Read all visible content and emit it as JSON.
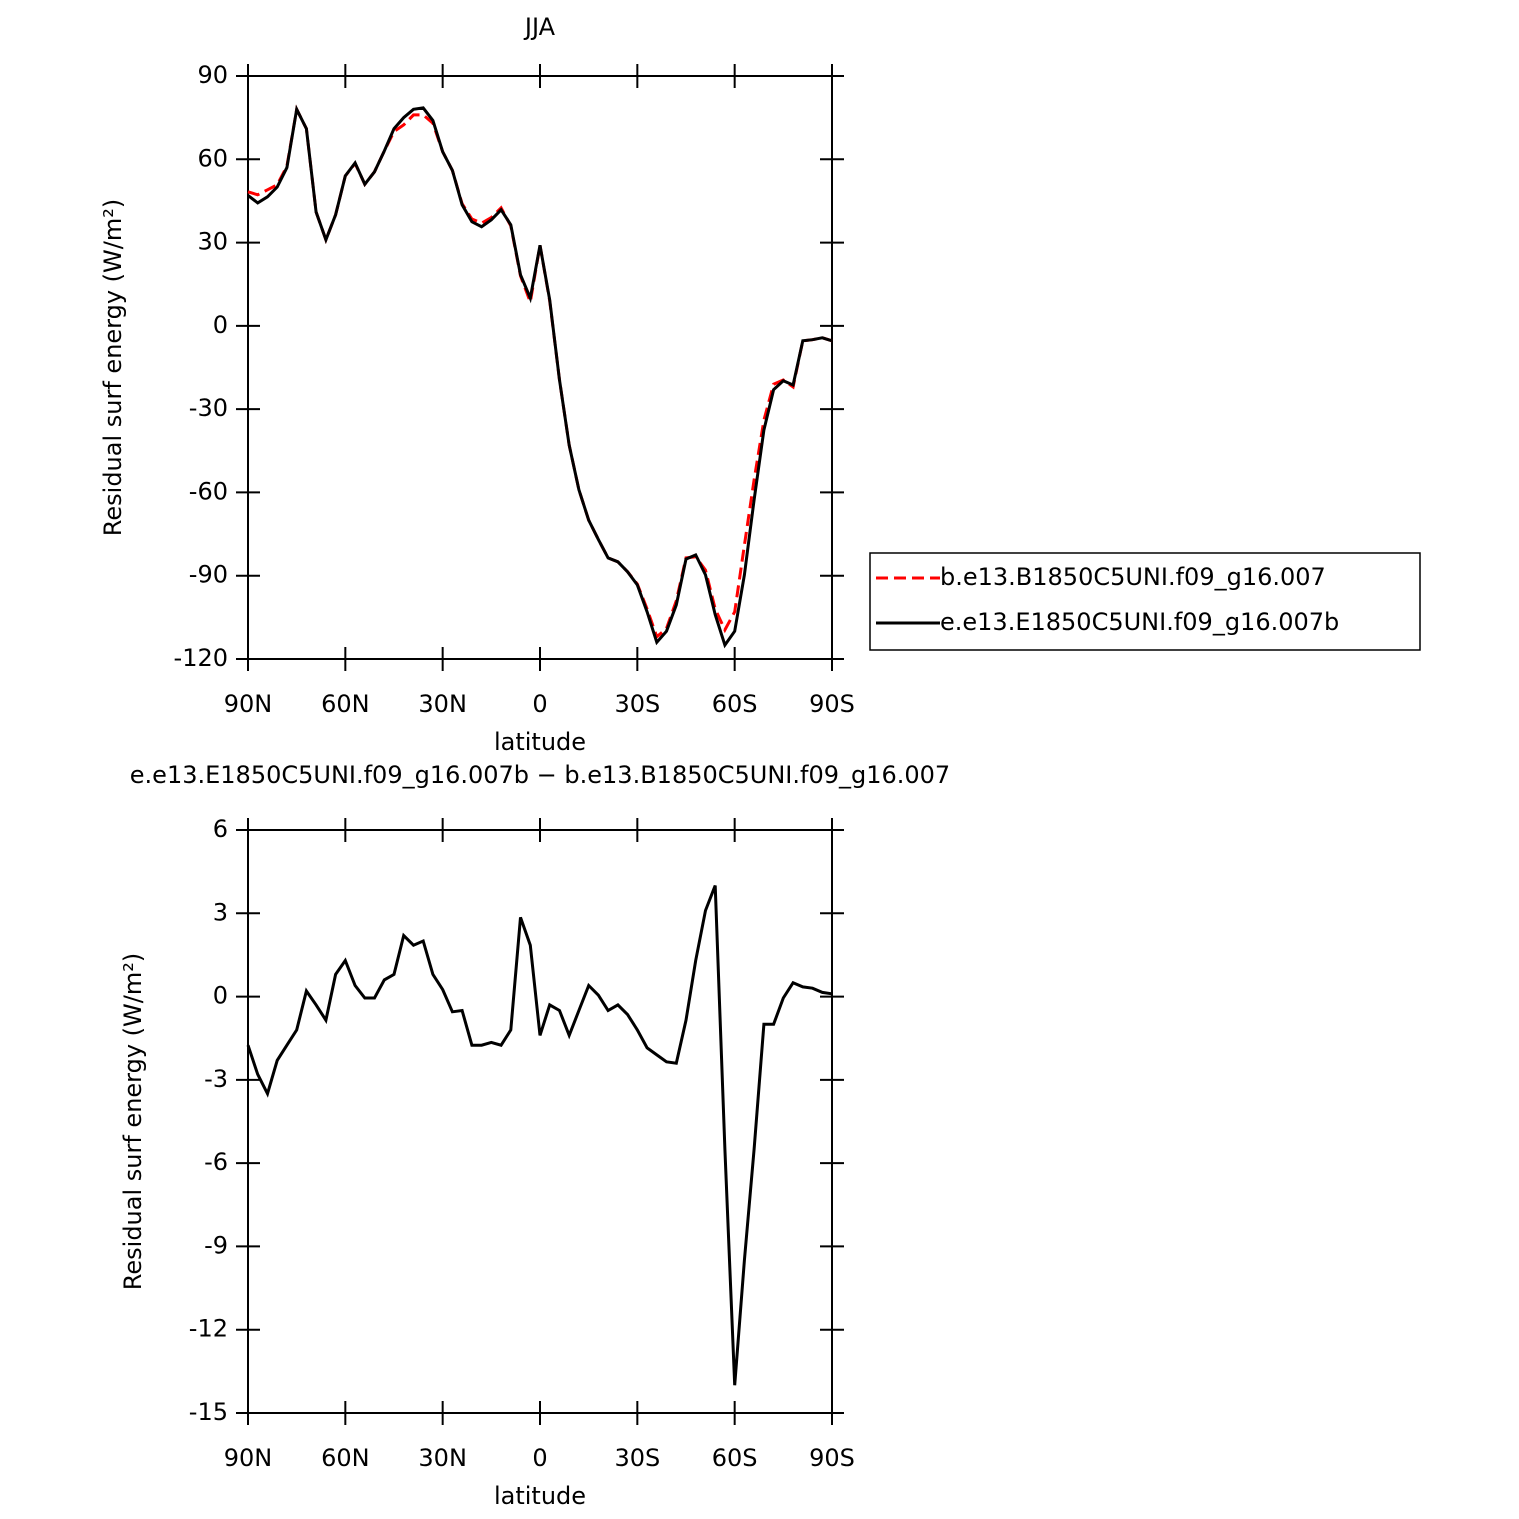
{
  "chart_data": [
    {
      "type": "line",
      "title": "JJA",
      "xlabel": "latitude",
      "ylabel": "Residual surf energy (W/m²)",
      "x": [
        90,
        87,
        84,
        81,
        78,
        75,
        72,
        69,
        66,
        63,
        60,
        57,
        54,
        51,
        48,
        45,
        42,
        39,
        36,
        33,
        30,
        27,
        24,
        21,
        18,
        15,
        12,
        9,
        6,
        3,
        0,
        -3,
        -6,
        -9,
        -12,
        -15,
        -18,
        -21,
        -24,
        -27,
        -30,
        -33,
        -36,
        -39,
        -42,
        -45,
        -48,
        -51,
        -54,
        -57,
        -60,
        -63,
        -66,
        -69,
        -72,
        -75,
        -78,
        -81,
        -84,
        -87,
        -90
      ],
      "series": [
        {
          "name": "b.e13.B1850C5UNI.f09_g16.007",
          "color": "#ff0000",
          "dashed": true,
          "values": [
            48.3,
            47.2,
            49,
            50.8,
            57.5,
            78,
            71,
            41,
            31,
            40,
            54,
            58.5,
            51,
            55.5,
            63,
            70,
            72.4,
            76,
            76,
            73,
            62.7,
            56,
            44,
            38.5,
            37,
            39,
            42.5,
            36,
            18,
            8.6,
            29,
            9,
            -19.5,
            -43,
            -59,
            -70,
            -77,
            -83.6,
            -85,
            -88.6,
            -93,
            -102,
            -112,
            -109,
            -99,
            -83.6,
            -83.2,
            -88,
            -102,
            -109.5,
            -103,
            -79,
            -55.5,
            -34,
            -21,
            -19.5,
            -22,
            -5.4,
            -5,
            -4.3,
            -5.4
          ]
        },
        {
          "name": "e.e13.E1850C5UNI.f09_g16.007b",
          "color": "#000000",
          "dashed": false,
          "values": [
            47,
            44.3,
            46.5,
            50,
            57,
            78,
            71,
            41,
            31,
            40,
            54,
            58.7,
            51,
            55.5,
            63,
            71,
            75,
            78,
            78.5,
            74,
            62.7,
            56,
            43.6,
            37.5,
            35.7,
            38.2,
            41.8,
            36.4,
            18.4,
            10,
            29,
            9.4,
            -19.5,
            -43,
            -59,
            -70,
            -77,
            -83.6,
            -85,
            -88.6,
            -93.3,
            -103,
            -114,
            -110,
            -100.5,
            -84,
            -82.5,
            -89.7,
            -104,
            -115,
            -110,
            -89.7,
            -62.7,
            -37.5,
            -23,
            -19.8,
            -21.3,
            -5.4,
            -5,
            -4.3,
            -5.4
          ]
        }
      ],
      "xlim": [
        90,
        -90
      ],
      "xticks": [
        {
          "value": 90,
          "label": "90N"
        },
        {
          "value": 60,
          "label": "60N"
        },
        {
          "value": 30,
          "label": "30N"
        },
        0,
        {
          "value": -30,
          "label": "30S"
        },
        {
          "value": -60,
          "label": "60S"
        },
        {
          "value": -90,
          "label": "90S"
        }
      ],
      "ylim": [
        -120,
        90
      ],
      "yticks": [
        -120,
        -90,
        -60,
        -30,
        0,
        30,
        60,
        90
      ],
      "legend": "right"
    },
    {
      "type": "line",
      "title": "e.e13.E1850C5UNI.f09_g16.007b − b.e13.B1850C5UNI.f09_g16.007",
      "xlabel": "latitude",
      "ylabel": "Residual surf energy (W/m²)",
      "x": [
        90,
        87,
        84,
        81,
        78,
        75,
        72,
        69,
        66,
        63,
        60,
        57,
        54,
        51,
        48,
        45,
        42,
        39,
        36,
        33,
        30,
        27,
        24,
        21,
        18,
        15,
        12,
        9,
        6,
        3,
        0,
        -3,
        -6,
        -9,
        -12,
        -15,
        -18,
        -21,
        -24,
        -27,
        -30,
        -33,
        -36,
        -39,
        -42,
        -45,
        -48,
        -51,
        -54,
        -57,
        -60,
        -63,
        -66,
        -69,
        -72,
        -75,
        -78,
        -81,
        -84,
        -87,
        -90
      ],
      "series": [
        {
          "name": "e.e13.E1850C5UNI.f09_g16.007b − b.e13.B1850C5UNI.f09_g16.007",
          "color": "#000000",
          "dashed": false,
          "values": [
            -1.75,
            -2.8,
            -3.5,
            -2.3,
            -1.75,
            -1.2,
            0.2,
            -0.3,
            -0.85,
            0.8,
            1.3,
            0.4,
            -0.05,
            -0.05,
            0.6,
            0.8,
            2.2,
            1.85,
            2.0,
            0.8,
            0.25,
            -0.55,
            -0.5,
            -1.75,
            -1.75,
            -1.65,
            -1.75,
            -1.2,
            2.85,
            1.85,
            -1.4,
            -0.3,
            -0.5,
            -1.4,
            -0.5,
            0.4,
            0.05,
            -0.5,
            -0.3,
            -0.65,
            -1.2,
            -1.85,
            -2.1,
            -2.35,
            -2.4,
            -0.85,
            1.3,
            3.1,
            4.0,
            -5.5,
            -14,
            -9.5,
            -5.5,
            -1.0,
            -1.0,
            -0.05,
            0.5,
            0.35,
            0.3,
            0.15,
            0.1
          ]
        }
      ],
      "xlim": [
        90,
        -90
      ],
      "xticks": [
        {
          "value": 90,
          "label": "90N"
        },
        {
          "value": 60,
          "label": "60N"
        },
        {
          "value": 30,
          "label": "30N"
        },
        0,
        {
          "value": -30,
          "label": "30S"
        },
        {
          "value": -60,
          "label": "60S"
        },
        {
          "value": -90,
          "label": "90S"
        }
      ],
      "ylim": [
        -15,
        6
      ],
      "yticks": [
        -15,
        -12,
        -9,
        -6,
        -3,
        0,
        3,
        6
      ]
    }
  ]
}
